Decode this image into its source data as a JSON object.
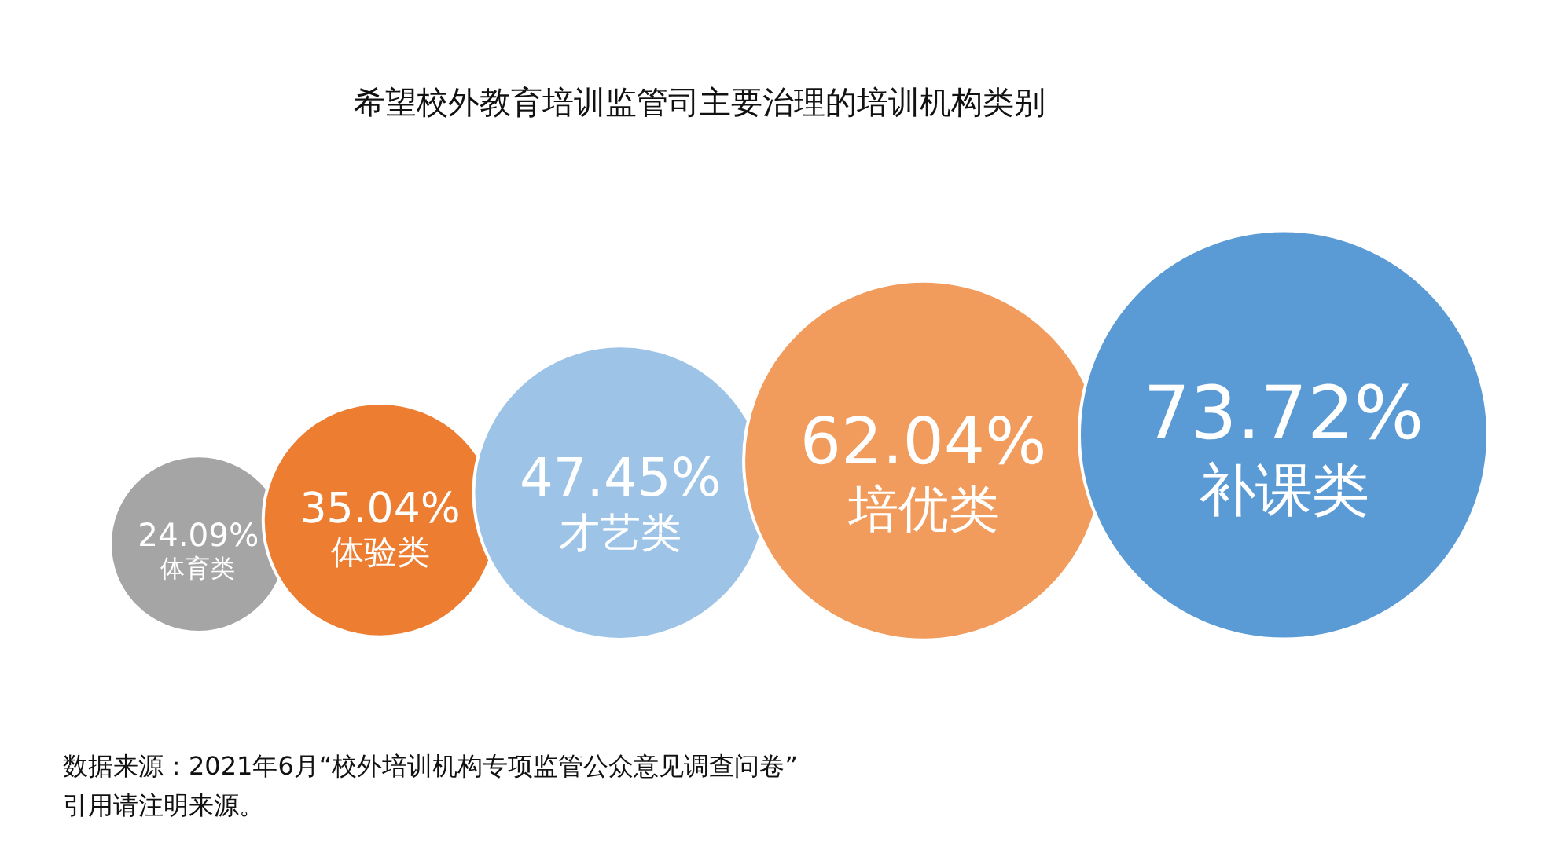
{
  "chart_data": {
    "type": "other",
    "title": "希望校外教育培训监管司主要治理的培训机构类别",
    "categories": [
      "体育类",
      "体验类",
      "才艺类",
      "培优类",
      "补课类"
    ],
    "values": [
      24.09,
      35.04,
      47.45,
      62.04,
      73.72
    ],
    "value_labels": [
      "24.09%",
      "35.04%",
      "47.45%",
      "62.04%",
      "73.72%"
    ],
    "colors": [
      "#a5a5a5",
      "#ed7d31",
      "#9dc3e6",
      "#f19b5c",
      "#5b9bd5"
    ],
    "legend": false,
    "annotations": [
      "数据来源：2021年6月“校外培训机构专项监管公众意见调查问卷”",
      "引用请注明来源。"
    ]
  }
}
